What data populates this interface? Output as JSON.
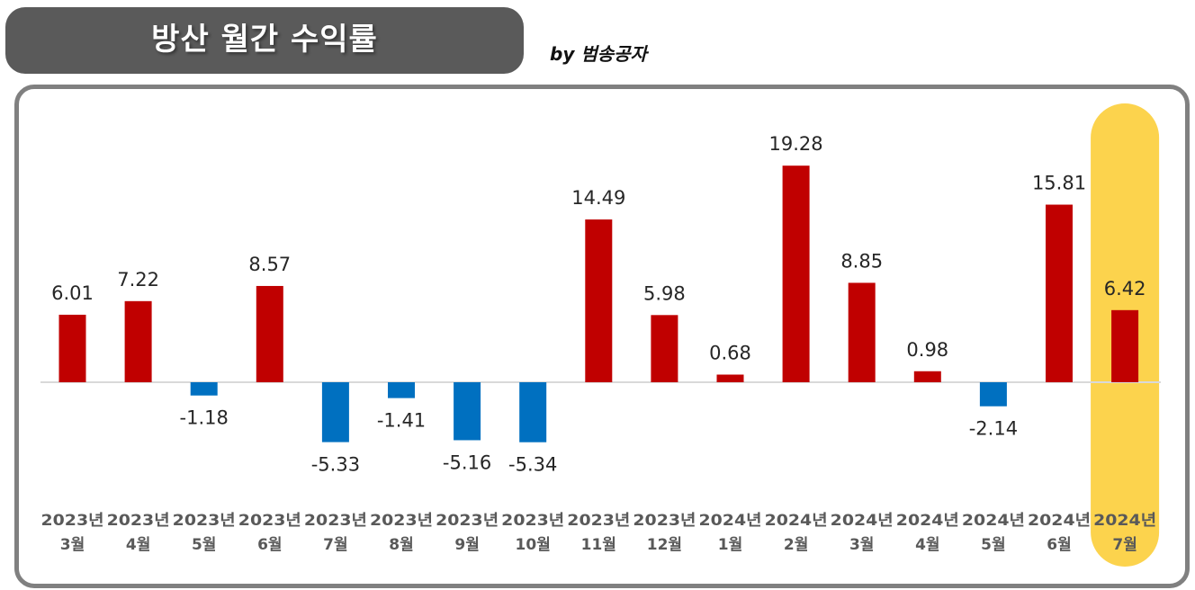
{
  "header": {
    "title": "방산 월간 수익률",
    "byline": "by 범송공자"
  },
  "colors": {
    "positive": "#c00000",
    "negative": "#0070c0",
    "highlight": "#fcd34d",
    "title_bg": "#5a5a5a",
    "frame": "#808080"
  },
  "chart_data": {
    "type": "bar",
    "title": "",
    "xlabel": "",
    "ylabel": "",
    "grid": false,
    "legend": "none",
    "ylim": [
      -8,
      22
    ],
    "categories": [
      [
        "2023년",
        "3월"
      ],
      [
        "2023년",
        "4월"
      ],
      [
        "2023년",
        "5월"
      ],
      [
        "2023년",
        "6월"
      ],
      [
        "2023년",
        "7월"
      ],
      [
        "2023년",
        "8월"
      ],
      [
        "2023년",
        "9월"
      ],
      [
        "2023년",
        "10월"
      ],
      [
        "2023년",
        "11월"
      ],
      [
        "2023년",
        "12월"
      ],
      [
        "2024년",
        "1월"
      ],
      [
        "2024년",
        "2월"
      ],
      [
        "2024년",
        "3월"
      ],
      [
        "2024년",
        "4월"
      ],
      [
        "2024년",
        "5월"
      ],
      [
        "2024년",
        "6월"
      ],
      [
        "2024년",
        "7월"
      ]
    ],
    "values": [
      6.01,
      7.22,
      -1.18,
      8.57,
      -5.33,
      -1.41,
      -5.16,
      -5.34,
      14.49,
      5.98,
      0.68,
      19.28,
      8.85,
      0.98,
      -2.14,
      15.81,
      6.42
    ],
    "labels": [
      "6.01",
      "7.22",
      "-1.18",
      "8.57",
      "-5.33",
      "-1.41",
      "-5.16",
      "-5.34",
      "14.49",
      "5.98",
      "0.68",
      "19.28",
      "8.85",
      "0.98",
      "-2.14",
      "15.81",
      "6.42"
    ],
    "highlight_index": 16
  }
}
